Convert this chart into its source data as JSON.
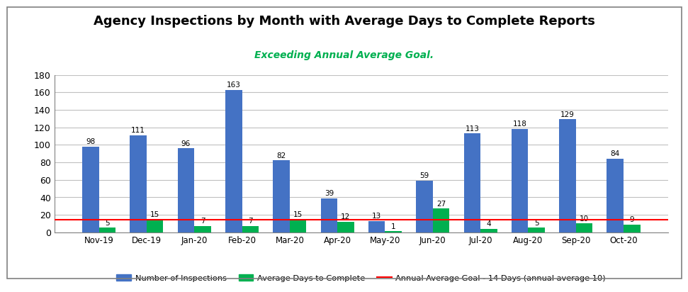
{
  "months": [
    "Nov-19",
    "Dec-19",
    "Jan-20",
    "Feb-20",
    "Mar-20",
    "Apr-20",
    "May-20",
    "Jun-20",
    "Jul-20",
    "Aug-20",
    "Sep-20",
    "Oct-20"
  ],
  "inspections": [
    98,
    111,
    96,
    163,
    82,
    39,
    13,
    59,
    113,
    118,
    129,
    84
  ],
  "avg_days": [
    5,
    15,
    7,
    7,
    15,
    12,
    1,
    27,
    4,
    5,
    10,
    9
  ],
  "annual_goal": 14,
  "bar_color_inspections": "#4472C4",
  "bar_color_days": "#00B050",
  "goal_line_color": "#FF0000",
  "title": "Agency Inspections by Month with Average Days to Complete Reports",
  "subtitle": "Exceeding Annual Average Goal.",
  "subtitle_color": "#00B050",
  "title_fontsize": 13,
  "subtitle_fontsize": 10,
  "ylim": [
    0,
    180
  ],
  "yticks": [
    0,
    20,
    40,
    60,
    80,
    100,
    120,
    140,
    160,
    180
  ],
  "bar_width": 0.35,
  "legend_label_inspections": "Number of Inspections",
  "legend_label_days": "Average Days to Complete",
  "legend_label_goal": "Annual Average Goal - 14 Days (annual average 10)",
  "background_color": "#FFFFFF",
  "grid_color": "#C0C0C0",
  "border_color": "#808080"
}
